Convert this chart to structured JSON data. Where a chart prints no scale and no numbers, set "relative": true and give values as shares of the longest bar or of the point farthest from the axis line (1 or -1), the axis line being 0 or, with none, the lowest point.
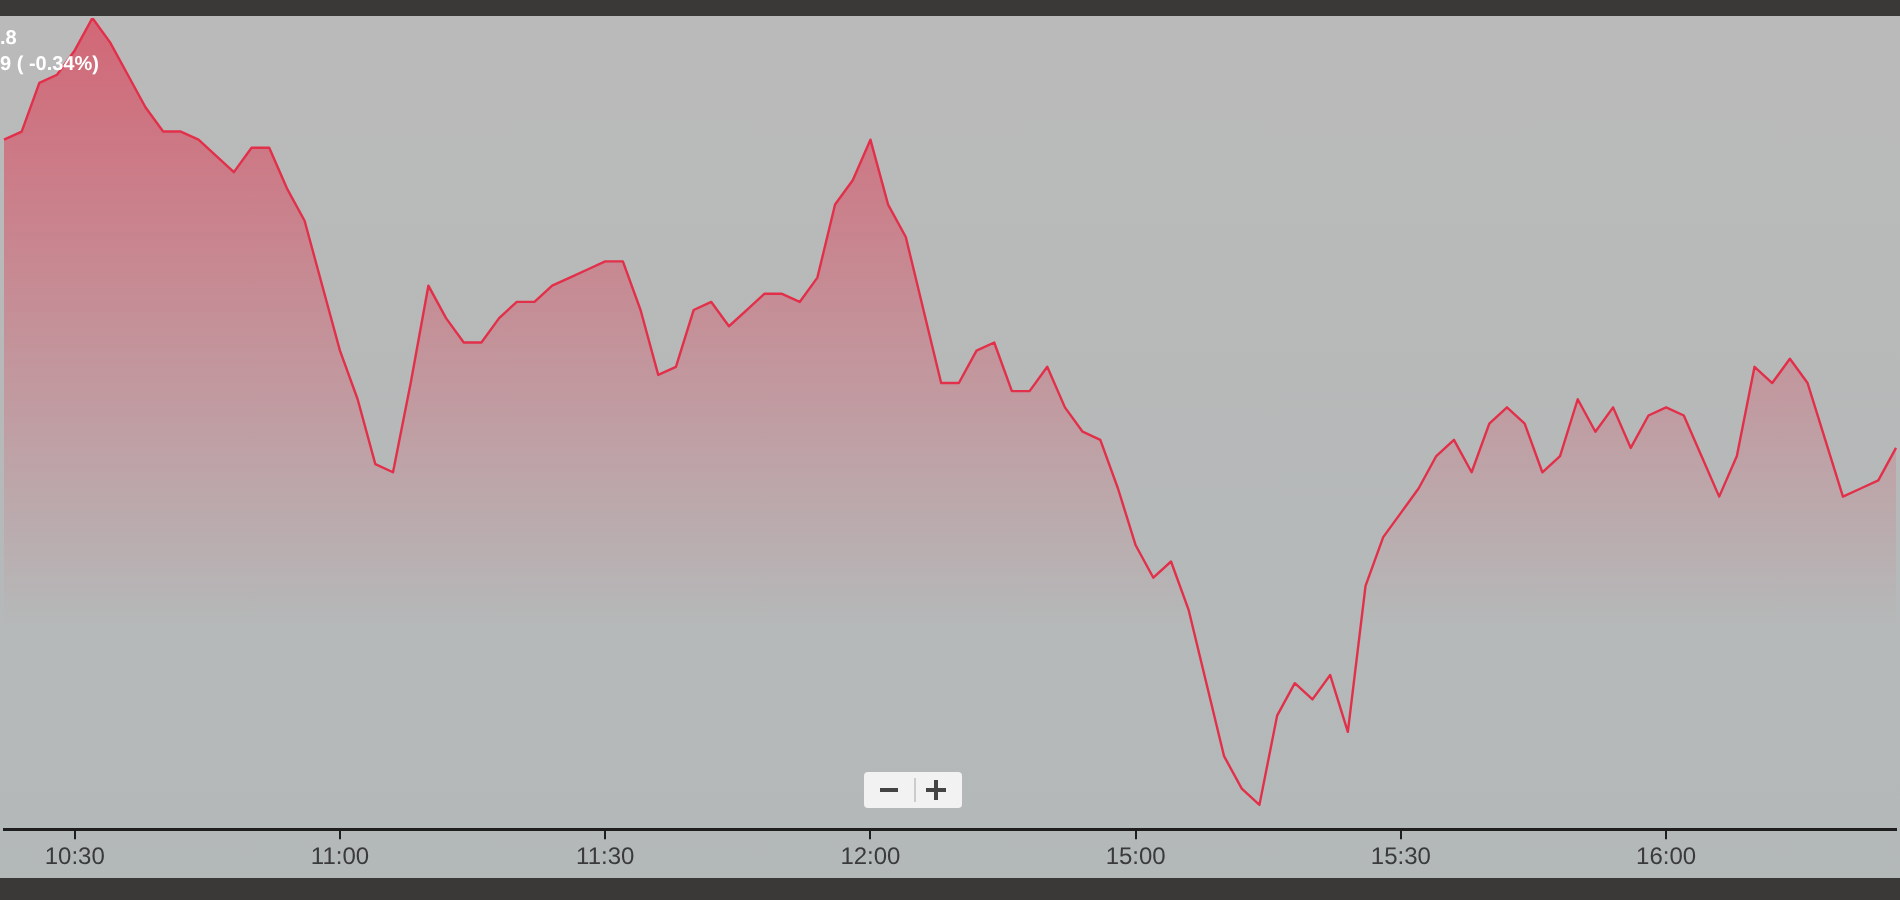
{
  "chart_data": {
    "type": "area",
    "relative": true,
    "color": "#e2304a",
    "annotations": [
      ".8",
      "9 ( -0.34%)"
    ],
    "categories": [
      null,
      null,
      null,
      null,
      "10:30",
      null,
      null,
      null,
      null,
      null,
      null,
      null,
      null,
      null,
      null,
      null,
      null,
      null,
      null,
      "11:00",
      null,
      null,
      null,
      null,
      null,
      null,
      null,
      null,
      null,
      null,
      null,
      null,
      null,
      null,
      "11:30",
      null,
      null,
      null,
      null,
      null,
      null,
      null,
      null,
      null,
      null,
      null,
      null,
      null,
      null,
      "12:00",
      null,
      null,
      null,
      null,
      null,
      null,
      null,
      null,
      null,
      null,
      null,
      null,
      null,
      null,
      "15:00",
      null,
      null,
      null,
      null,
      null,
      null,
      null,
      null,
      null,
      null,
      null,
      null,
      null,
      null,
      "15:30",
      null,
      null,
      null,
      null,
      null,
      null,
      null,
      null,
      null,
      null,
      null,
      null,
      null,
      null,
      "16:00",
      null,
      null,
      null,
      null,
      null,
      null,
      null,
      null,
      null,
      null,
      null,
      null,
      null
    ],
    "values": [
      0.85,
      0.86,
      0.92,
      0.93,
      0.96,
      1.0,
      0.97,
      0.93,
      0.89,
      0.86,
      0.86,
      0.85,
      0.83,
      0.81,
      0.84,
      0.84,
      0.79,
      0.75,
      0.67,
      0.59,
      0.53,
      0.45,
      0.44,
      0.55,
      0.67,
      0.63,
      0.6,
      0.6,
      0.63,
      0.65,
      0.65,
      0.67,
      0.68,
      0.69,
      0.7,
      0.7,
      0.64,
      0.56,
      0.57,
      0.64,
      0.65,
      0.62,
      0.64,
      0.66,
      0.66,
      0.65,
      0.68,
      0.77,
      0.8,
      0.85,
      0.77,
      0.73,
      0.64,
      0.55,
      0.55,
      0.59,
      0.6,
      0.54,
      0.54,
      0.57,
      0.52,
      0.49,
      0.48,
      0.42,
      0.35,
      0.31,
      0.33,
      0.27,
      0.18,
      0.09,
      0.05,
      0.03,
      0.14,
      0.18,
      0.16,
      0.19,
      0.12,
      0.3,
      0.36,
      0.39,
      0.42,
      0.46,
      0.48,
      0.44,
      0.5,
      0.52,
      0.5,
      0.44,
      0.46,
      0.53,
      0.49,
      0.52,
      0.47,
      0.51,
      0.52,
      0.51,
      0.46,
      0.41,
      0.46,
      0.57,
      0.55,
      0.58,
      0.55,
      0.48,
      0.41,
      0.42,
      0.43,
      0.47
    ]
  }
}
